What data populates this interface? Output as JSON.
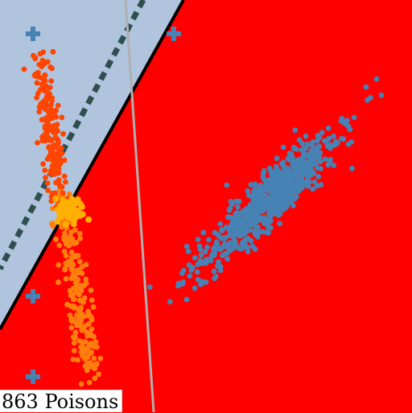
{
  "label": {
    "text": "863 Poisons"
  },
  "colors": {
    "background_region": "#ff0000",
    "safe_region": "#b0c4de",
    "decision_boundary": "#000000",
    "dashed_boundary": "#2f4f4f",
    "gray_line": "#b0b0b0",
    "clean_points": "#4682b4",
    "poison_points_dark": "#ff4500",
    "poison_points_light": "#ff7f0e",
    "poison_points_yellow": "#ffb000"
  },
  "icons": {
    "marker": "plus-marker-icon"
  }
}
